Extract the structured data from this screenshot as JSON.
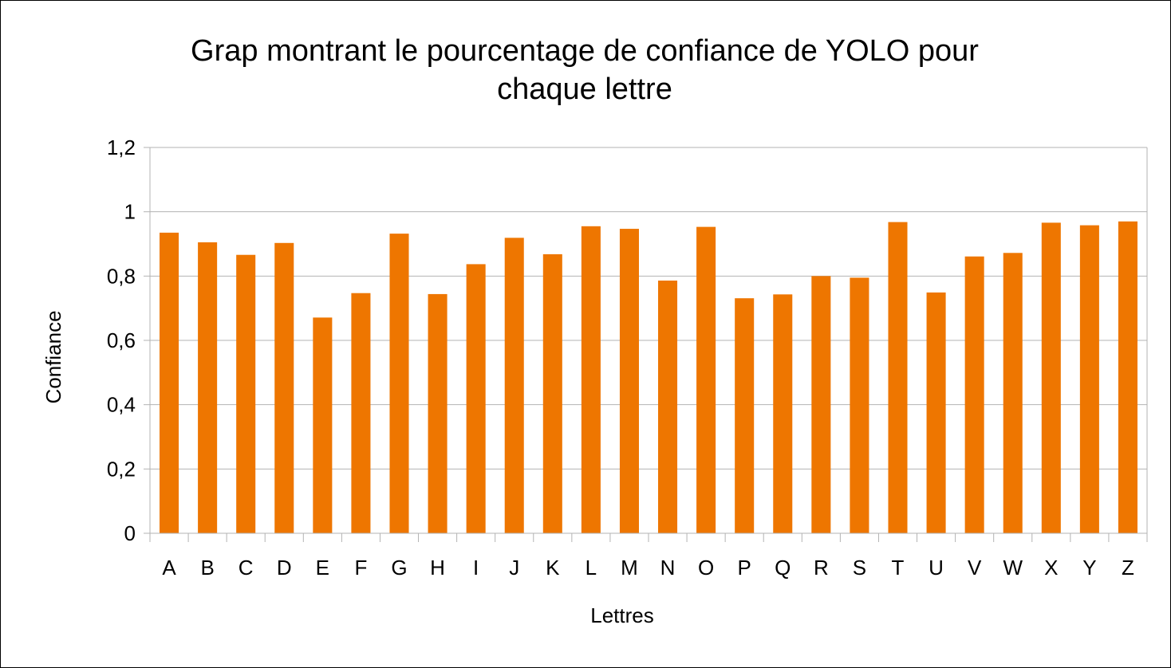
{
  "chart_data": {
    "type": "bar",
    "title_lines": [
      "Grap montrant le pourcentage de confiance de YOLO pour",
      "chaque lettre"
    ],
    "xlabel": "Lettres",
    "ylabel": "Confiance",
    "categories": [
      "A",
      "B",
      "C",
      "D",
      "E",
      "F",
      "G",
      "H",
      "I",
      "J",
      "K",
      "L",
      "M",
      "N",
      "O",
      "P",
      "Q",
      "R",
      "S",
      "T",
      "U",
      "V",
      "W",
      "X",
      "Y",
      "Z"
    ],
    "values": [
      0.935,
      0.905,
      0.866,
      0.903,
      0.671,
      0.747,
      0.932,
      0.744,
      0.837,
      0.919,
      0.868,
      0.955,
      0.947,
      0.786,
      0.953,
      0.731,
      0.743,
      0.8,
      0.795,
      0.968,
      0.749,
      0.861,
      0.872,
      0.966,
      0.958,
      0.97
    ],
    "ylim": [
      0,
      1.2
    ],
    "yticks": [
      0,
      0.2,
      0.4,
      0.6,
      0.8,
      1,
      1.2
    ],
    "ytick_labels": [
      "0",
      "0,2",
      "0,4",
      "0,6",
      "0,8",
      "1",
      "1,2"
    ],
    "grid": true,
    "legend": "none",
    "bar_color": "#ee7600",
    "grid_color": "#b3b3b3"
  }
}
